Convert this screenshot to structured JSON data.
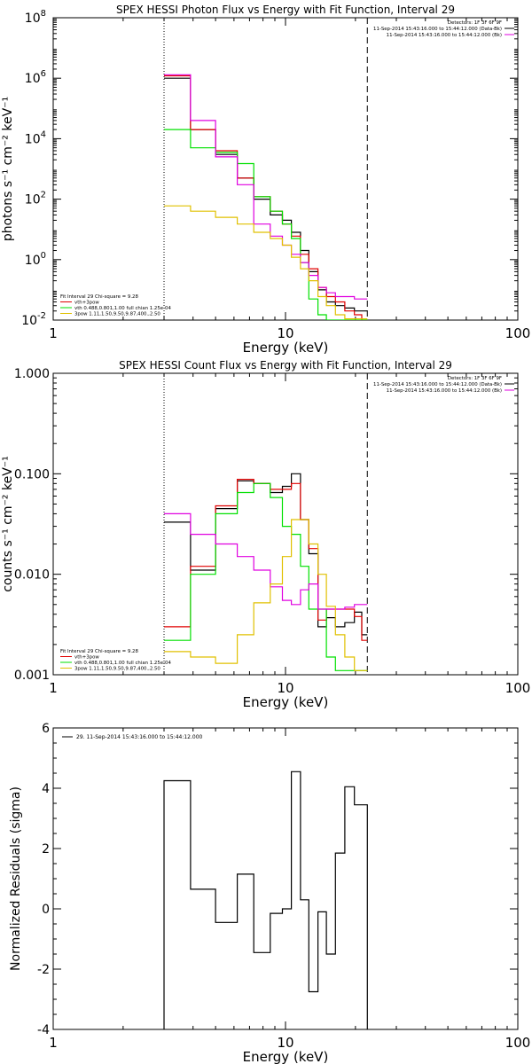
{
  "chart_data": [
    {
      "type": "line",
      "scale": "log-log",
      "title": "SPEX HESSI Photon Flux vs Energy with Fit Function, Interval 29",
      "xlabel": "Energy (keV)",
      "ylabel": "photons s⁻¹ cm⁻² keV⁻¹",
      "xlim": [
        1,
        100
      ],
      "ylim": [
        0.01,
        100000000
      ],
      "xticks": [
        {
          "v": 1,
          "label": "1"
        },
        {
          "v": 10,
          "label": "10"
        },
        {
          "v": 100,
          "label": "100"
        }
      ],
      "yticks": [
        {
          "v": 0.01,
          "base": "10",
          "exp": "-2"
        },
        {
          "v": 1,
          "base": "10",
          "exp": "0"
        },
        {
          "v": 100,
          "base": "10",
          "exp": "2"
        },
        {
          "v": 10000,
          "base": "10",
          "exp": "4"
        },
        {
          "v": 1000000,
          "base": "10",
          "exp": "6"
        },
        {
          "v": 100000000,
          "base": "10",
          "exp": "8"
        }
      ],
      "vlines": [
        {
          "x": 3.0,
          "style": "dotted"
        },
        {
          "x": 22.5,
          "style": "dashed"
        }
      ],
      "info_lines": [
        "Detectors: 1F 3F 6F 9F",
        "11-Sep-2014 15:43:16.000 to 15:44:12.000 (Data-Bk)",
        "11-Sep-2014 15:43:16.000 to 15:44:12.000 (Bk)"
      ],
      "fit_lines": [
        "Fit Interval 29   Chi-square = 9.28",
        "vth+3pow",
        "vth 0.488,0.801,1.00  full chian 1.25e-04",
        "3pow 1.11,1.50,9.50,9.87,400.,2.50"
      ],
      "edges": [
        3.0,
        3.9,
        5.0,
        6.2,
        7.3,
        8.6,
        9.7,
        10.6,
        11.6,
        12.6,
        13.8,
        15.0,
        16.4,
        18.0,
        19.8,
        21.3,
        22.5
      ],
      "series": [
        {
          "color": "#000000",
          "values": [
            1000000,
            20000,
            3000,
            500,
            100,
            30,
            20,
            8,
            2,
            0.4,
            0.1,
            0.04,
            0.03,
            0.025,
            0.02,
            0.02
          ]
        },
        {
          "color": "#e00000",
          "values": [
            1200000,
            20000,
            4000,
            500,
            120,
            40,
            15,
            6,
            1.5,
            0.5,
            0.12,
            0.06,
            0.04,
            0.02,
            0.015,
            0.01
          ]
        },
        {
          "color": "#00e000",
          "values": [
            20000,
            5000,
            3500,
            1500,
            120,
            40,
            15,
            5,
            0.8,
            0.05,
            0.015,
            0.01,
            0.01,
            0.01,
            0.01,
            0.01
          ]
        },
        {
          "color": "#e000e0",
          "values": [
            1300000,
            40000,
            2500,
            300,
            15,
            6,
            3,
            1.5,
            0.8,
            0.3,
            0.12,
            0.08,
            0.06,
            0.06,
            0.05,
            0.05
          ]
        },
        {
          "color": "#e0c000",
          "values": [
            60,
            40,
            25,
            15,
            8,
            5,
            3,
            1.2,
            0.5,
            0.2,
            0.06,
            0.03,
            0.015,
            0.011,
            0.011,
            0.011
          ]
        }
      ]
    },
    {
      "type": "line",
      "scale": "log-log",
      "title": "SPEX HESSI Count Flux vs Energy with Fit Function, Interval 29",
      "xlabel": "Energy (keV)",
      "ylabel": "counts s⁻¹ cm⁻² keV⁻¹",
      "xlim": [
        1,
        100
      ],
      "ylim": [
        0.001,
        1.0
      ],
      "xticks": [
        {
          "v": 1,
          "label": "1"
        },
        {
          "v": 10,
          "label": "10"
        },
        {
          "v": 100,
          "label": "100"
        }
      ],
      "yticks": [
        {
          "v": 0.001,
          "label": "0.001"
        },
        {
          "v": 0.01,
          "label": "0.010"
        },
        {
          "v": 0.1,
          "label": "0.100"
        },
        {
          "v": 1.0,
          "label": "1.000"
        }
      ],
      "vlines": [
        {
          "x": 3.0,
          "style": "dotted"
        },
        {
          "x": 22.5,
          "style": "dashed"
        }
      ],
      "info_lines": [
        "Detectors: 1F 3F 6F 9F",
        "11-Sep-2014 15:43:16.000 to 15:44:12.000 (Data-Bk)",
        "11-Sep-2014 15:43:16.000 to 15:44:12.000 (Bk)"
      ],
      "fit_lines": [
        "Fit Interval 29   Chi-square = 9.28",
        "vth+3pow",
        "vth 0.488,0.801,1.00  full chian 1.25e-04",
        "3pow 1.11,1.50,9.50,9.87,400.,2.50"
      ],
      "edges": [
        3.0,
        3.9,
        5.0,
        6.2,
        7.3,
        8.6,
        9.7,
        10.6,
        11.6,
        12.6,
        13.8,
        15.0,
        16.4,
        18.0,
        19.8,
        21.3,
        22.5
      ],
      "series": [
        {
          "color": "#000000",
          "values": [
            0.033,
            0.011,
            0.045,
            0.085,
            0.08,
            0.065,
            0.075,
            0.1,
            0.035,
            0.016,
            0.003,
            0.0037,
            0.003,
            0.0033,
            0.0042,
            0.0025
          ]
        },
        {
          "color": "#e00000",
          "values": [
            0.003,
            0.012,
            0.048,
            0.088,
            0.08,
            0.07,
            0.07,
            0.08,
            0.035,
            0.018,
            0.0035,
            0.0045,
            0.0045,
            0.0045,
            0.0038,
            0.0022
          ]
        },
        {
          "color": "#00e000",
          "values": [
            0.0022,
            0.01,
            0.04,
            0.065,
            0.08,
            0.058,
            0.03,
            0.025,
            0.012,
            0.0045,
            0.0045,
            0.0015,
            0.0011,
            0.0011,
            0.0011,
            0.0011
          ]
        },
        {
          "color": "#e000e0",
          "values": [
            0.04,
            0.025,
            0.02,
            0.015,
            0.011,
            0.0075,
            0.0055,
            0.005,
            0.007,
            0.008,
            0.0045,
            0.0045,
            0.0045,
            0.0047,
            0.005,
            0.005
          ]
        },
        {
          "color": "#e0c000",
          "values": [
            0.0017,
            0.0015,
            0.0013,
            0.0025,
            0.0052,
            0.008,
            0.015,
            0.035,
            0.035,
            0.02,
            0.01,
            0.0048,
            0.0025,
            0.0015,
            0.0011,
            0.0011
          ]
        }
      ]
    },
    {
      "type": "line",
      "scale": "log-x",
      "title": "",
      "xlabel": "Energy (keV)",
      "ylabel": "Normalized Residuals (sigma)",
      "xlim": [
        1,
        100
      ],
      "ylim": [
        -4,
        6
      ],
      "xticks": [
        {
          "v": 1,
          "label": "1"
        },
        {
          "v": 10,
          "label": "10"
        },
        {
          "v": 100,
          "label": "100"
        }
      ],
      "yticks": [
        {
          "v": -4,
          "label": "-4"
        },
        {
          "v": -2,
          "label": "-2"
        },
        {
          "v": 0,
          "label": "0"
        },
        {
          "v": 2,
          "label": "2"
        },
        {
          "v": 4,
          "label": "4"
        },
        {
          "v": 6,
          "label": "6"
        }
      ],
      "legend": "29. 11-Sep-2014 15:43:16.000 to 15:44:12.000",
      "edges": [
        3.0,
        3.9,
        5.0,
        6.2,
        7.3,
        8.6,
        9.7,
        10.6,
        11.6,
        12.6,
        13.8,
        15.0,
        16.4,
        18.0,
        19.8,
        21.3,
        22.5
      ],
      "series": [
        {
          "color": "#000000",
          "values": [
            4.25,
            0.65,
            -0.45,
            1.15,
            -1.45,
            -0.15,
            0.0,
            4.55,
            0.3,
            -2.75,
            -0.1,
            -1.5,
            1.85,
            4.05,
            3.45,
            3.45
          ]
        }
      ]
    }
  ]
}
